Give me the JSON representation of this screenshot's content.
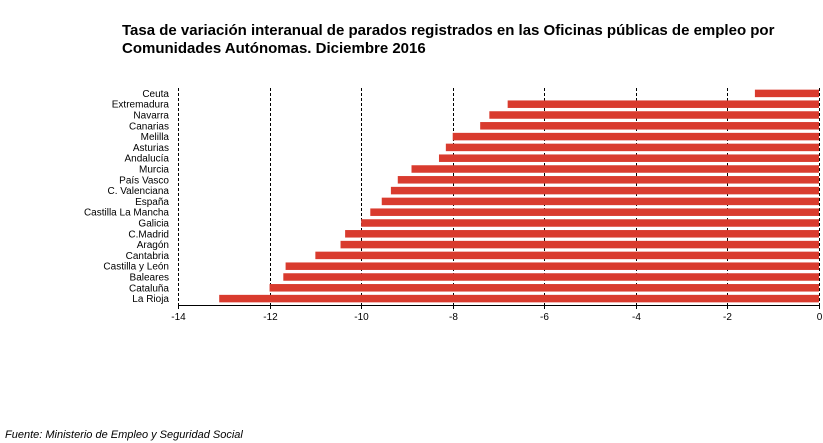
{
  "chart_data": {
    "type": "bar",
    "orientation": "horizontal",
    "title": "Tasa de variación interanual de parados registrados en las Oficinas públicas de empleo por Comunidades Autónomas.  Diciembre 2016",
    "title_lines": [
      "Tasa de variación interanual de parados registrados en las Oficinas públicas de empleo por",
      "Comunidades Autónomas.  Diciembre 2016"
    ],
    "categories": [
      "Ceuta",
      "Extremadura",
      "Navarra",
      "Canarias",
      "Melilla",
      "Asturias",
      "Andalucía",
      "Murcia",
      "País Vasco",
      "C. Valenciana",
      "España",
      "Castilla La Mancha",
      "Galicia",
      "C.Madrid",
      "Aragón",
      "Cantabria",
      "Castilla y León",
      "Baleares",
      "Cataluña",
      "La Rioja"
    ],
    "values": [
      -1.4,
      -6.8,
      -7.2,
      -7.4,
      -8.0,
      -8.15,
      -8.3,
      -8.9,
      -9.2,
      -9.35,
      -9.55,
      -9.8,
      -10.0,
      -10.35,
      -10.45,
      -11.0,
      -11.65,
      -11.7,
      -12.0,
      -13.1
    ],
    "xlim": [
      -14,
      0
    ],
    "xticks": [
      -14,
      -12,
      -10,
      -8,
      -6,
      -4,
      -2,
      0
    ],
    "tick_labels": [
      "-14",
      "-12",
      "-10",
      "-8",
      "-6",
      "-4",
      "-2",
      "0"
    ],
    "gridlines": "vertical dashed",
    "bar_color": "#d93b2e",
    "source": "Fuente: Ministerio de Empleo y Seguridad Social"
  }
}
